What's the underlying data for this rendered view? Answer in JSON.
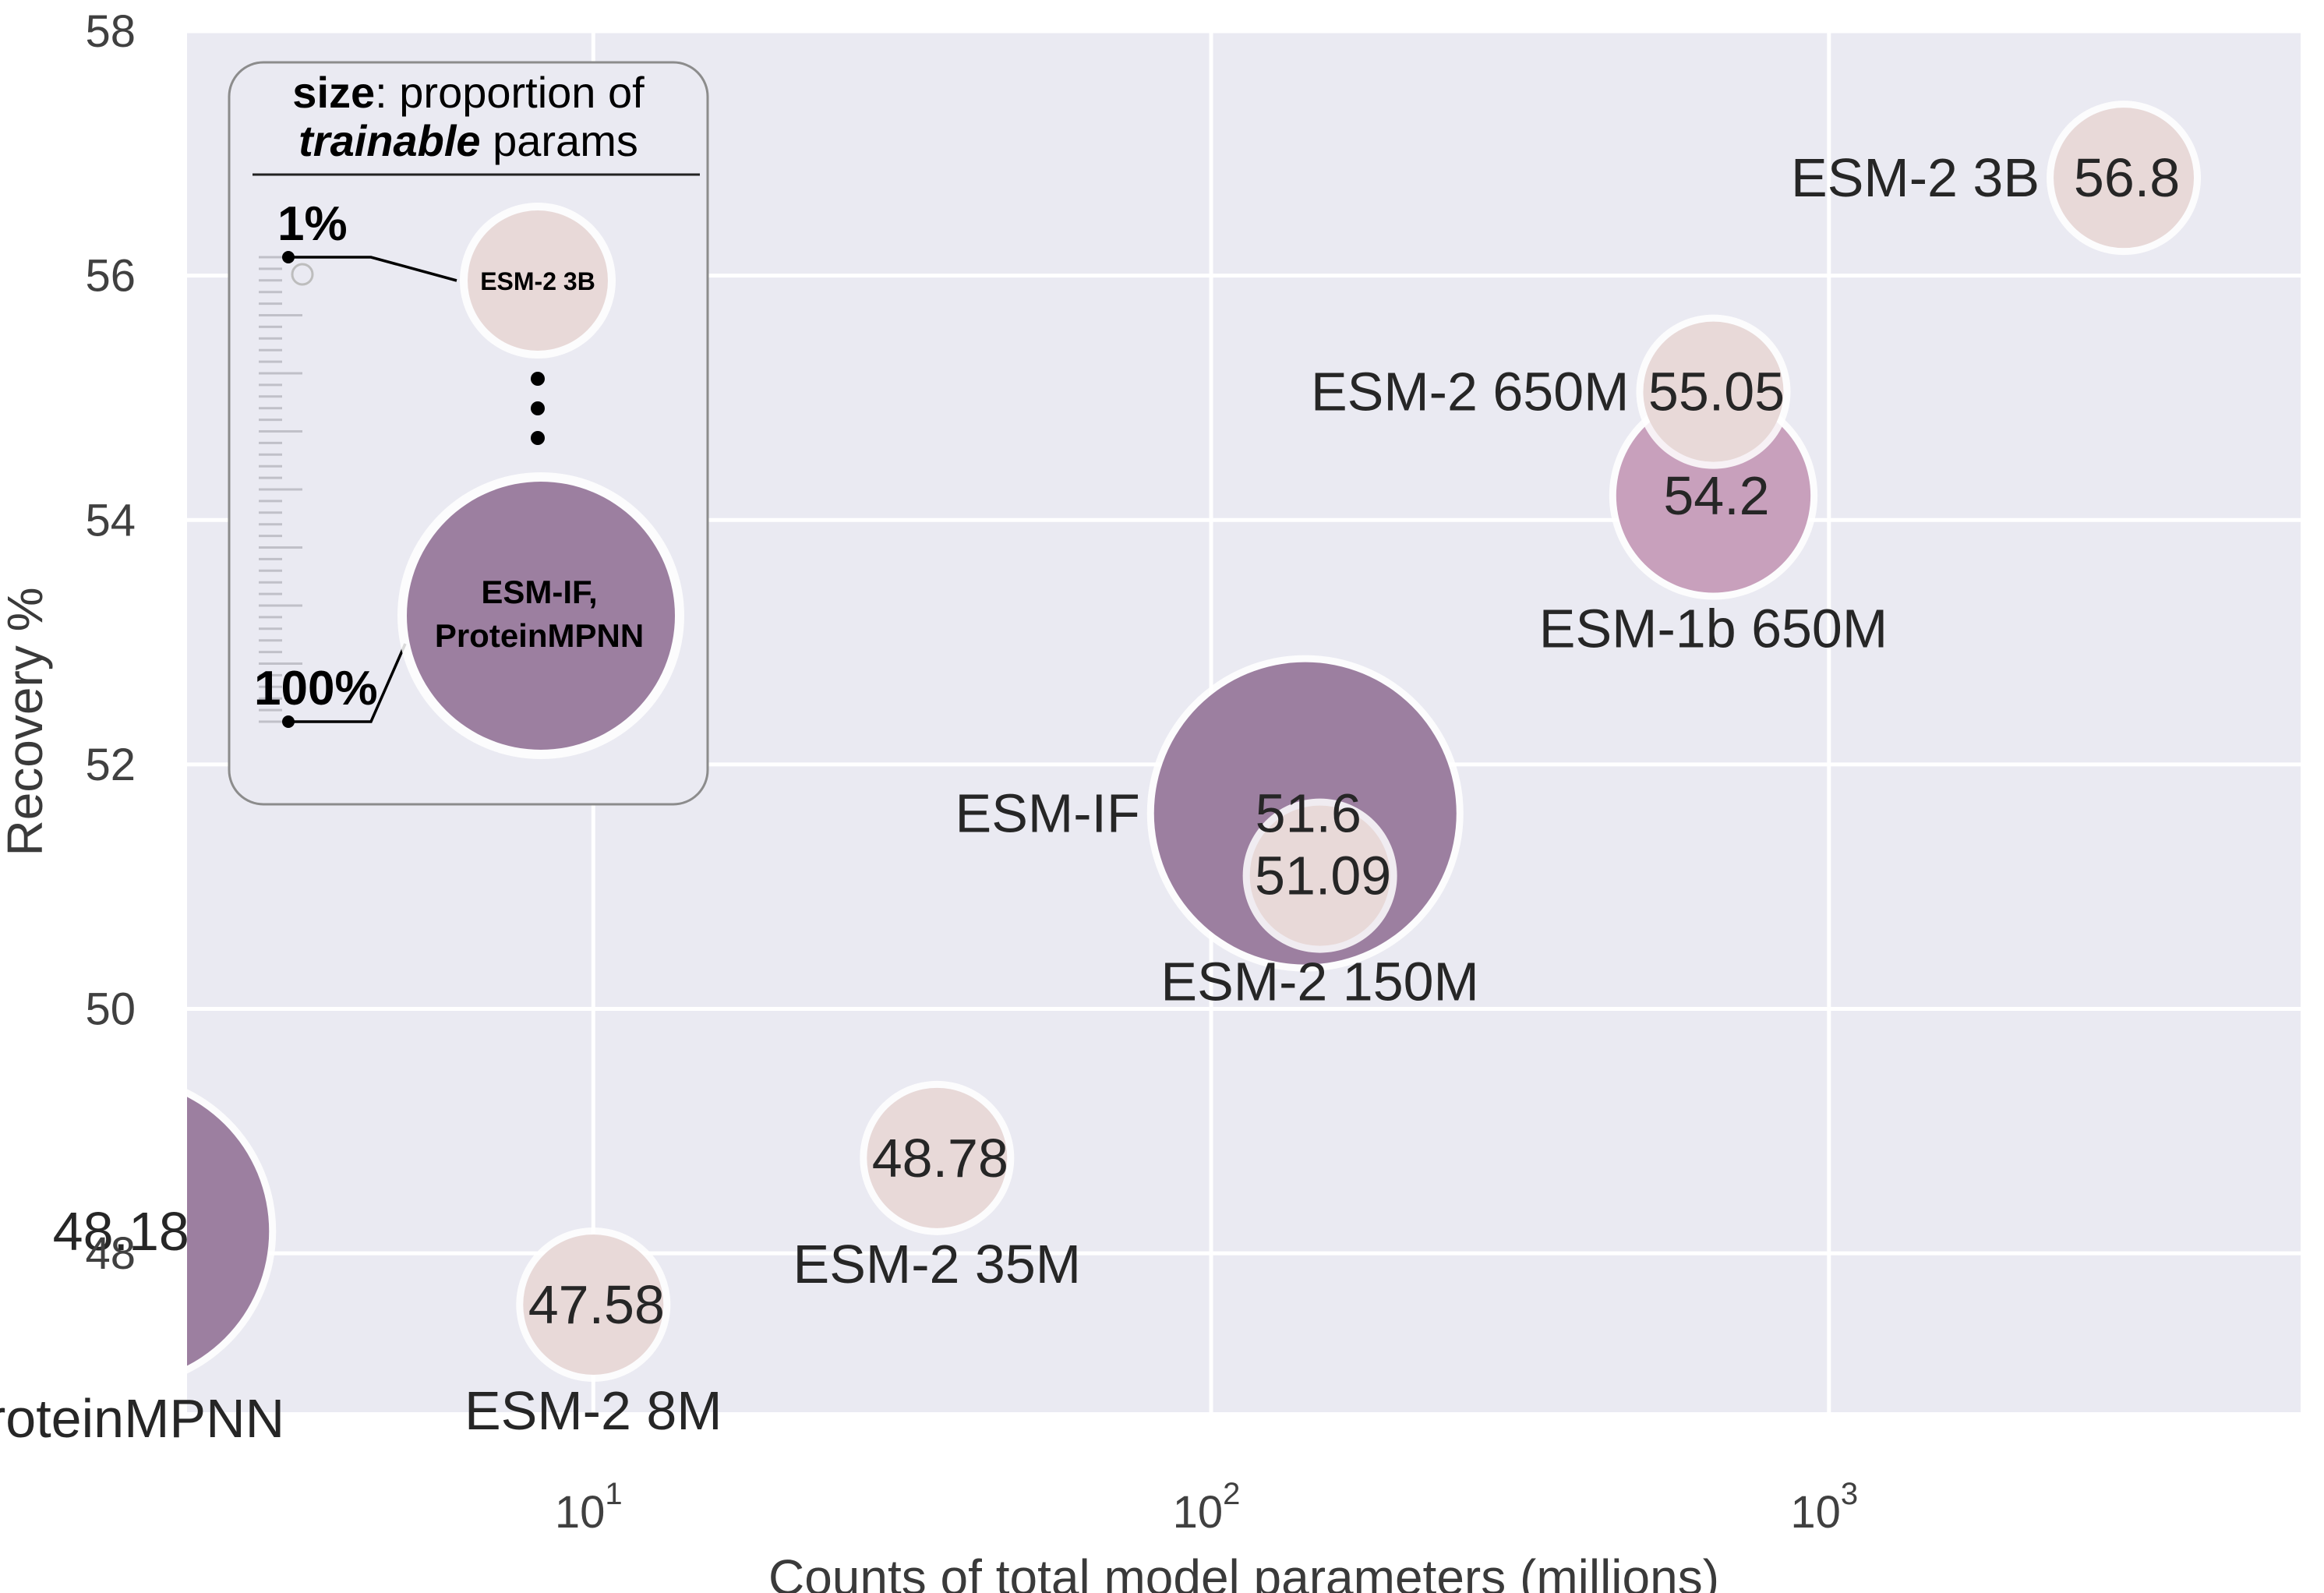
{
  "chart_data": {
    "type": "scatter",
    "subtype": "bubble",
    "title": "",
    "xlabel": "Counts of total model parameters (millions)",
    "ylabel": "Recovery %",
    "xscale": "log",
    "xlim": [
      2.2,
      5800
    ],
    "ylim": [
      46.7,
      58
    ],
    "grid": true,
    "x_ticks": [
      {
        "value": 10,
        "base": "10",
        "exp": "1"
      },
      {
        "value": 100,
        "base": "10",
        "exp": "2"
      },
      {
        "value": 1000,
        "base": "10",
        "exp": "3"
      }
    ],
    "y_ticks": [
      48,
      50,
      52,
      54,
      56,
      58
    ],
    "points": [
      {
        "name": "ProteinMPNN",
        "label": "ProteinMPNN",
        "x": 1.7,
        "y": 48.18,
        "value_label": "48.18",
        "trainable": 1.0,
        "color": "#9c7fa0",
        "label_pos": "below"
      },
      {
        "name": "ESM-2 8M",
        "label": "ESM-2 8M",
        "x": 10,
        "y": 47.58,
        "value_label": "47.58",
        "trainable": 0.01,
        "color": "#e8d9d8",
        "label_pos": "below"
      },
      {
        "name": "ESM-2 35M",
        "label": "ESM-2 35M",
        "x": 36,
        "y": 48.78,
        "value_label": "48.78",
        "trainable": 0.01,
        "color": "#e8d9d8",
        "label_pos": "below"
      },
      {
        "name": "ESM-IF",
        "label": "ESM-IF",
        "x": 142,
        "y": 51.6,
        "value_label": "51.6",
        "trainable": 1.0,
        "color": "#9c7fa0",
        "label_pos": "left"
      },
      {
        "name": "ESM-2 150M",
        "label": "ESM-2 150M",
        "x": 150,
        "y": 51.09,
        "value_label": "51.09",
        "trainable": 0.01,
        "color": "#e8d9d8",
        "label_pos": "below"
      },
      {
        "name": "ESM-1b 650M",
        "label": "ESM-1b 650M",
        "x": 650,
        "y": 54.2,
        "value_label": "54.2",
        "trainable": 0.12,
        "color": "#c8a0bc",
        "label_pos": "below"
      },
      {
        "name": "ESM-2 650M",
        "label": "ESM-2 650M",
        "x": 650,
        "y": 55.05,
        "value_label": "55.05",
        "trainable": 0.01,
        "color": "#e8d9d8",
        "label_pos": "left"
      },
      {
        "name": "ESM-2 3B",
        "label": "ESM-2 3B",
        "x": 3000,
        "y": 56.8,
        "value_label": "56.8",
        "trainable": 0.01,
        "color": "#e8d9d8",
        "label_pos": "left"
      }
    ],
    "legend": {
      "title_bold": "size",
      "title_rest": ": proportion of",
      "title_line2_italic": "trainable",
      "title_line2_rest": " params",
      "min_label": "1%",
      "max_label": "100%",
      "small_example": "ESM-2 3B",
      "large_example_line1": "ESM-IF,",
      "large_example_line2": "ProteinMPNN",
      "small_color": "#e8d9d8",
      "large_color": "#9c7fa0",
      "placement": "top-left"
    },
    "colors": {
      "background": "#eaeaf2",
      "grid": "#ffffff",
      "text": "#262626"
    }
  }
}
